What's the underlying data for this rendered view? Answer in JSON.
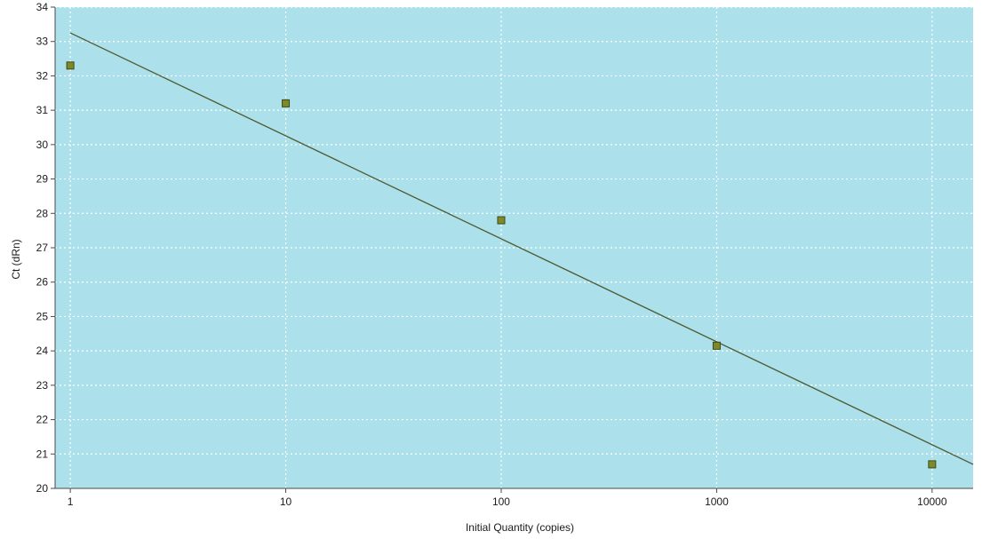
{
  "chart_data": {
    "type": "scatter",
    "xlabel": "Initial Quantity (copies)",
    "ylabel": "Ct (dRn)",
    "x_scale": "log",
    "xlim": [
      0.85,
      15500
    ],
    "ylim": [
      20,
      34
    ],
    "x_ticks": [
      1,
      10,
      100,
      1000,
      10000
    ],
    "x_tick_labels": [
      "1",
      "10",
      "100",
      "1000",
      "10000"
    ],
    "y_ticks": [
      20,
      21,
      22,
      23,
      24,
      25,
      26,
      27,
      28,
      29,
      30,
      31,
      32,
      33,
      34
    ],
    "grid": true,
    "points": [
      {
        "x": 1,
        "y": 32.3
      },
      {
        "x": 10,
        "y": 31.2
      },
      {
        "x": 100,
        "y": 27.8
      },
      {
        "x": 1000,
        "y": 24.15
      },
      {
        "x": 10000,
        "y": 20.7
      }
    ],
    "fit_line": {
      "x_start": 1,
      "y_start": 33.25,
      "x_end": 15500,
      "y_end": 20.7
    },
    "colors": {
      "plot_background": "#ace0ea",
      "grid": "#ffffff",
      "fit_line": "#4e5a32",
      "marker_fill": "#7e8a2a",
      "marker_stroke": "#3f4816",
      "axis": "#4a4a4a"
    }
  }
}
